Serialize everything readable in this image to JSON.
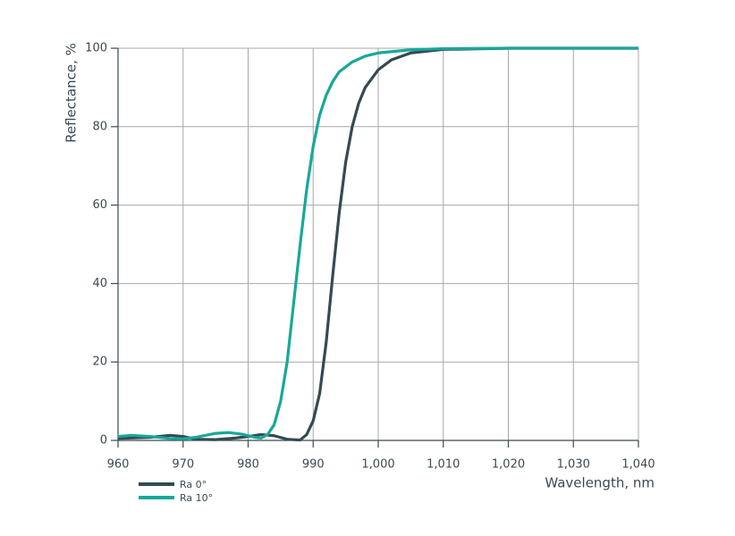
{
  "chart_data": {
    "type": "line",
    "x_label": "Wavelength, nm",
    "y_label": "Reflectance, %",
    "xlim": [
      960,
      1040
    ],
    "ylim": [
      0,
      100
    ],
    "xticks": [
      960,
      970,
      980,
      990,
      {
        "value": 1000,
        "label": "1,000"
      },
      {
        "value": 1010,
        "label": "1,010"
      },
      {
        "value": 1020,
        "label": "1,020"
      },
      {
        "value": 1030,
        "label": "1,030"
      },
      {
        "value": 1040,
        "label": "1,040"
      }
    ],
    "yticks": [
      0,
      20,
      40,
      60,
      80,
      100
    ],
    "grid": true,
    "legend": "bottom-left",
    "series": [
      {
        "name": "Ra 0°",
        "color": "#344a52",
        "x": [
          960,
          965,
          968,
          970,
          972,
          975,
          978,
          980,
          982,
          984,
          986,
          988,
          989,
          990,
          991,
          992,
          993,
          994,
          995,
          996,
          997,
          998,
          1000,
          1002,
          1005,
          1010,
          1020,
          1040
        ],
        "values": [
          0.5,
          0.8,
          1.3,
          1.0,
          0.3,
          0.2,
          0.6,
          1.0,
          1.5,
          1.2,
          0.3,
          0.1,
          1.5,
          5,
          12,
          25,
          42,
          58,
          71,
          80,
          86,
          90,
          94.5,
          97,
          98.8,
          99.7,
          100,
          100
        ]
      },
      {
        "name": "Ra 10°",
        "color": "#17a89a",
        "x": [
          960,
          962,
          965,
          968,
          970,
          972,
          975,
          977,
          979,
          981,
          982,
          983,
          984,
          985,
          986,
          987,
          988,
          989,
          990,
          991,
          992,
          993,
          994,
          996,
          998,
          1000,
          1005,
          1010,
          1020,
          1040
        ],
        "values": [
          1.0,
          1.3,
          1.0,
          0.5,
          0.4,
          0.8,
          1.8,
          2.0,
          1.6,
          0.8,
          0.6,
          1.5,
          4,
          10,
          20,
          35,
          50,
          64,
          75,
          83,
          88,
          91.5,
          94,
          96.5,
          98,
          98.8,
          99.6,
          99.9,
          100,
          100
        ]
      }
    ]
  }
}
